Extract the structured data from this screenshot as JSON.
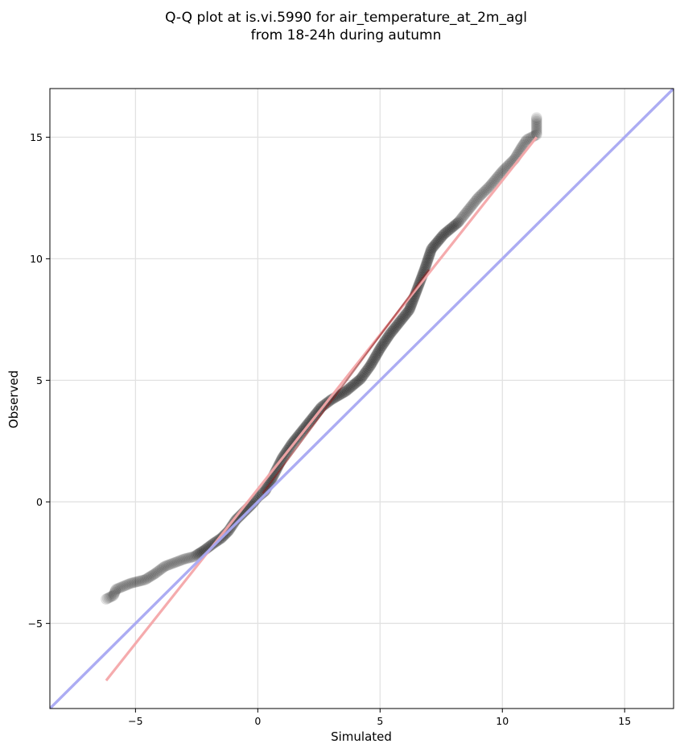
{
  "title_line1": "Q-Q plot at is.vi.5990 for air_temperature_at_2m_agl",
  "title_line2": "from 18-24h during autumn",
  "chart_data": {
    "type": "scatter",
    "title": "Q-Q plot at is.vi.5990 for air_temperature_at_2m_agl from 18-24h during autumn",
    "xlabel": "Simulated",
    "ylabel": "Observed",
    "xlim": [
      -8.5,
      17
    ],
    "ylim": [
      -8.5,
      17
    ],
    "xticks": [
      -5,
      0,
      5,
      10,
      15
    ],
    "yticks": [
      -5,
      0,
      5,
      10,
      15
    ],
    "xtick_labels": [
      "−5",
      "0",
      "5",
      "10",
      "15"
    ],
    "ytick_labels": [
      "−5",
      "0",
      "5",
      "10",
      "15"
    ],
    "grid": true,
    "quantile_curve": [
      [
        -6.2,
        -4.0
      ],
      [
        -5.9,
        -3.85
      ],
      [
        -5.8,
        -3.6
      ],
      [
        -5.2,
        -3.35
      ],
      [
        -5.0,
        -3.3
      ],
      [
        -4.6,
        -3.2
      ],
      [
        -4.2,
        -2.95
      ],
      [
        -3.8,
        -2.65
      ],
      [
        -3.4,
        -2.5
      ],
      [
        -3.0,
        -2.35
      ],
      [
        -2.6,
        -2.25
      ],
      [
        -2.2,
        -2.0
      ],
      [
        -1.8,
        -1.7
      ],
      [
        -1.5,
        -1.5
      ],
      [
        -1.2,
        -1.2
      ],
      [
        -0.9,
        -0.75
      ],
      [
        -0.5,
        -0.35
      ],
      [
        -0.2,
        -0.05
      ],
      [
        0.0,
        0.2
      ],
      [
        0.3,
        0.45
      ],
      [
        0.6,
        1.0
      ],
      [
        1.0,
        1.8
      ],
      [
        1.4,
        2.4
      ],
      [
        1.8,
        2.9
      ],
      [
        2.2,
        3.4
      ],
      [
        2.6,
        3.9
      ],
      [
        3.0,
        4.2
      ],
      [
        3.6,
        4.55
      ],
      [
        4.2,
        5.05
      ],
      [
        4.6,
        5.6
      ],
      [
        5.0,
        6.3
      ],
      [
        5.4,
        6.9
      ],
      [
        5.8,
        7.4
      ],
      [
        6.2,
        7.9
      ],
      [
        6.5,
        8.7
      ],
      [
        6.8,
        9.5
      ],
      [
        7.1,
        10.4
      ],
      [
        7.6,
        11.0
      ],
      [
        8.2,
        11.5
      ],
      [
        8.6,
        12.0
      ],
      [
        9.0,
        12.5
      ],
      [
        9.5,
        13.0
      ],
      [
        10.0,
        13.6
      ],
      [
        10.5,
        14.1
      ],
      [
        10.8,
        14.6
      ],
      [
        11.0,
        14.9
      ],
      [
        11.4,
        15.1
      ],
      [
        11.4,
        15.8
      ]
    ],
    "series": [
      {
        "values": [
          [
            -6.2,
            -7.35
          ],
          [
            11.4,
            15.0
          ]
        ],
        "color": "#f4a6a9"
      },
      {
        "values": [
          [
            -8.5,
            -8.5
          ],
          [
            17,
            17
          ]
        ],
        "color": "#a8a8f2"
      },
      {
        "values": [
          [
            0.2,
            0.35
          ],
          [
            7.0,
            9.55
          ]
        ],
        "color": "#8b1a1a"
      }
    ],
    "markers_color": "#000000"
  }
}
